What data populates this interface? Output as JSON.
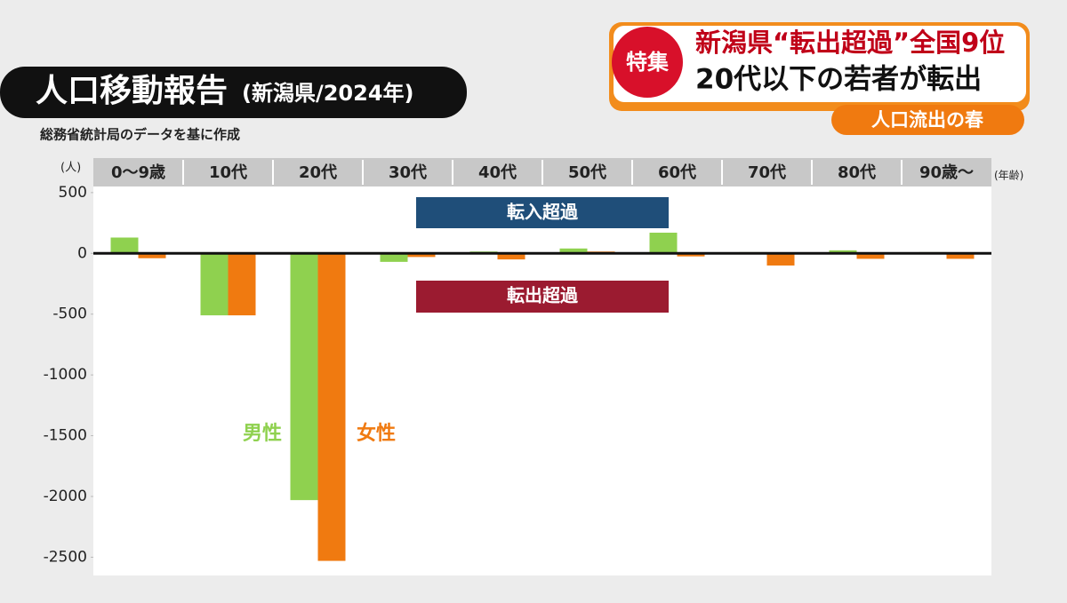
{
  "banner": {
    "badge": "特集",
    "headline": "新潟県“転出超過”全国9位",
    "subheadline": "20代以下の若者が転出",
    "tag": "人口流出の春"
  },
  "chart_data": {
    "type": "bar",
    "title": "人口移動報告",
    "subtitle": "(新潟県/2024年)",
    "source": "総務省統計局のデータを基に作成",
    "y_unit": "(人)",
    "x_unit": "(年齢)",
    "annotations": [
      "転入超過",
      "転出超過"
    ],
    "categories": [
      "0～9歳",
      "10代",
      "20代",
      "30代",
      "40代",
      "50代",
      "60代",
      "70代",
      "80代",
      "90歳～"
    ],
    "series": [
      {
        "name": "男性",
        "color": "#8fd14f",
        "values": [
          130,
          -510,
          -2030,
          -70,
          15,
          40,
          170,
          10,
          25,
          10
        ]
      },
      {
        "name": "女性",
        "color": "#f07a10",
        "values": [
          -40,
          -510,
          -2530,
          -30,
          -50,
          15,
          -25,
          -100,
          -45,
          -45
        ]
      }
    ],
    "ylim": [
      -2650,
      550
    ],
    "yticks": [
      500,
      0,
      -500,
      -1000,
      -1500,
      -2000,
      -2500
    ]
  }
}
